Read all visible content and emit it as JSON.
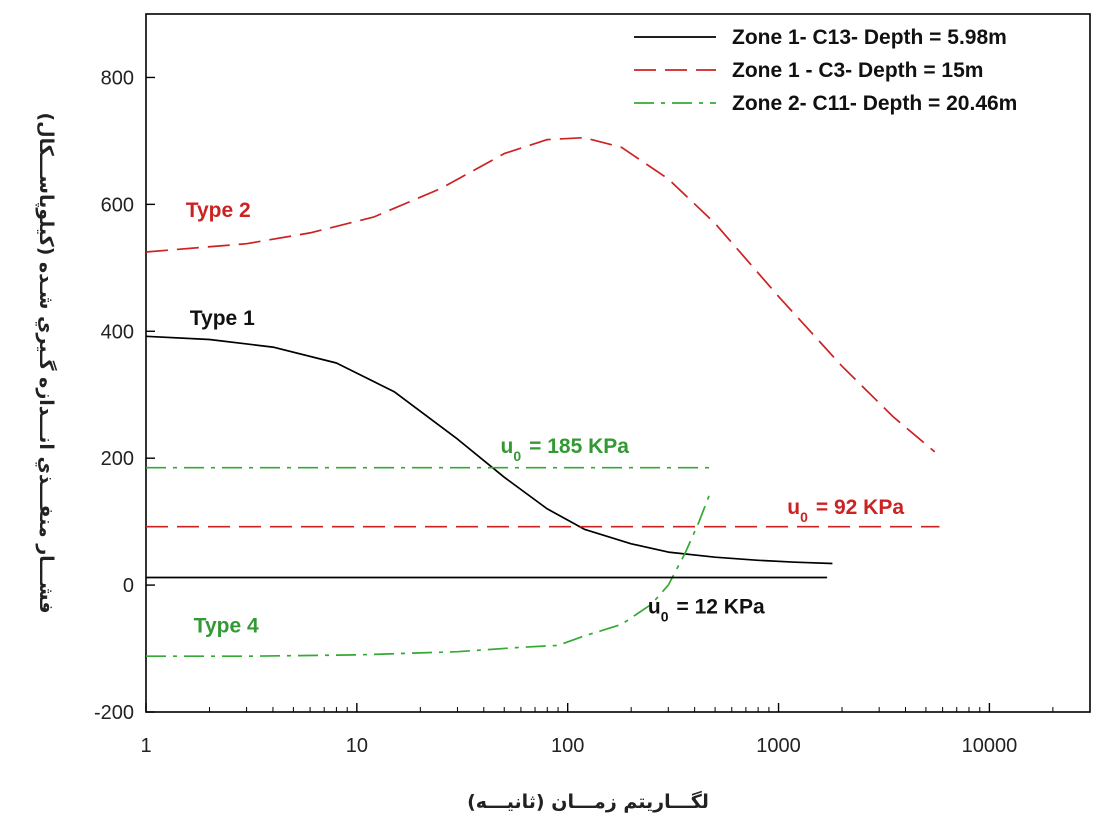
{
  "chart_data": {
    "type": "line",
    "xlabel": "لگـــاريتم زمـــان (ثانيـــه)",
    "ylabel": "فشـــار منفـــذي انـــدازه گـيري شـده (كيلوپاســـكال)",
    "x_scale": "log",
    "xlim": [
      1,
      30000
    ],
    "ylim": [
      -200,
      900
    ],
    "x_ticks": [
      1,
      10,
      100,
      1000,
      10000
    ],
    "x_tick_labels": [
      "1",
      "10",
      "100",
      "1000",
      "10000"
    ],
    "y_ticks": [
      -200,
      0,
      200,
      400,
      600,
      800
    ],
    "y_tick_labels": [
      "-200",
      "0",
      "200",
      "400",
      "600",
      "800"
    ],
    "legend_position": "top-right",
    "series": [
      {
        "name": "Zone 1- C13- Depth = 5.98m",
        "color": "#000000",
        "dash": "solid",
        "x": [
          1,
          2,
          4,
          8,
          15,
          30,
          50,
          80,
          120,
          200,
          300,
          500,
          800,
          1200,
          1800
        ],
        "y": [
          392,
          387,
          375,
          350,
          305,
          230,
          170,
          120,
          88,
          65,
          52,
          44,
          39,
          36,
          34
        ]
      },
      {
        "name": "Zone 1 - C3- Depth = 15m",
        "color": "#cc2222",
        "dash": "dashed",
        "x": [
          1,
          3,
          6,
          12,
          25,
          50,
          80,
          120,
          180,
          300,
          500,
          1000,
          2000,
          3500,
          5500
        ],
        "y": [
          525,
          538,
          555,
          580,
          625,
          680,
          702,
          705,
          690,
          640,
          570,
          455,
          345,
          265,
          210
        ]
      },
      {
        "name": "Zone 2- C11- Depth = 20.46m",
        "color": "#33aa33",
        "dash": "dashdot",
        "x": [
          1,
          3,
          10,
          30,
          60,
          90,
          120,
          180,
          250,
          300,
          360,
          420,
          480
        ],
        "y": [
          -112,
          -112,
          -110,
          -105,
          -98,
          -95,
          -80,
          -62,
          -30,
          0,
          50,
          100,
          150
        ]
      },
      {
        "name": "u0 = 12 KPa",
        "color": "#000000",
        "dash": "solid",
        "x": [
          1,
          1700
        ],
        "y": [
          12,
          12
        ]
      },
      {
        "name": "u0 = 92 KPa",
        "color": "#cc2222",
        "dash": "dashed",
        "x": [
          1,
          5800
        ],
        "y": [
          92,
          92
        ]
      },
      {
        "name": "u0 = 185 KPa",
        "color": "#33aa33",
        "dash": "dashdot",
        "x": [
          1,
          480
        ],
        "y": [
          185,
          185
        ]
      }
    ],
    "legend": [
      {
        "label": "Zone 1- C13- Depth = 5.98m",
        "series": 0
      },
      {
        "label": "Zone 1 - C3- Depth = 15m",
        "series": 1
      },
      {
        "label": "Zone 2- C11- Depth = 20.46m",
        "series": 2
      }
    ],
    "annotations": [
      {
        "text": "Type 2",
        "color": "#cc2222",
        "x": 2.2,
        "y": 580,
        "anchor": "middle"
      },
      {
        "text": "Type 1",
        "color": "#111111",
        "x": 2.3,
        "y": 410,
        "anchor": "middle"
      },
      {
        "text": "Type 4",
        "color": "#339933",
        "x": 2.4,
        "y": -75,
        "anchor": "middle"
      },
      {
        "u0": true,
        "value": "= 185 KPa",
        "color": "#339933",
        "x": 48,
        "y": 208,
        "anchor": "start"
      },
      {
        "u0": true,
        "value": "= 92 KPa",
        "color": "#cc2222",
        "x": 1100,
        "y": 112,
        "anchor": "start"
      },
      {
        "u0": true,
        "value": "= 12 KPa",
        "color": "#111111",
        "x": 240,
        "y": -45,
        "anchor": "start"
      }
    ]
  }
}
